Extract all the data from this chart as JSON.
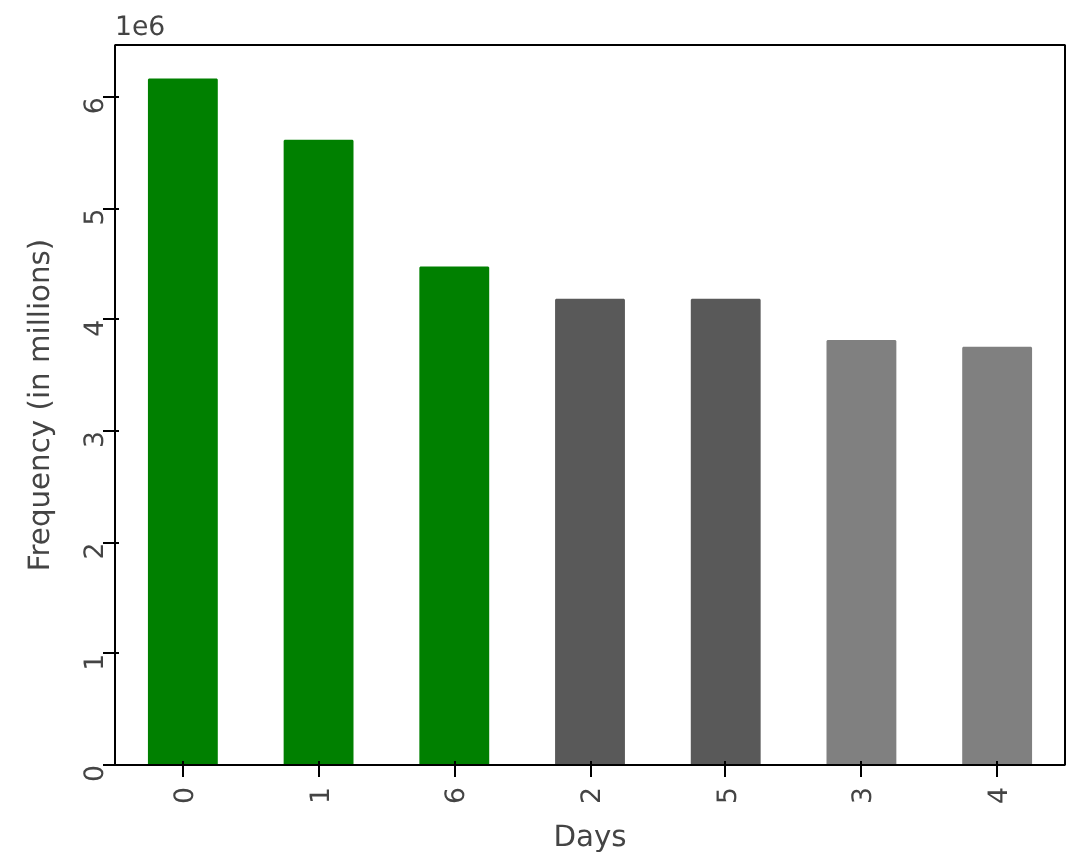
{
  "chart_data": {
    "type": "bar",
    "xlabel": "Days",
    "ylabel": "Frequency (in millions)",
    "categories": [
      "0",
      "1",
      "6",
      "2",
      "5",
      "3",
      "4"
    ],
    "values": [
      6.16,
      5.61,
      4.47,
      4.18,
      4.18,
      3.81,
      3.75
    ],
    "colors": [
      "#008000",
      "#008000",
      "#008000",
      "#595959",
      "#595959",
      "#808080",
      "#808080"
    ],
    "ylim": [
      0,
      6.47
    ],
    "yticks": [
      0,
      1,
      2,
      3,
      4,
      5,
      6
    ],
    "annotations": [
      "1e6"
    ],
    "grid": false
  }
}
